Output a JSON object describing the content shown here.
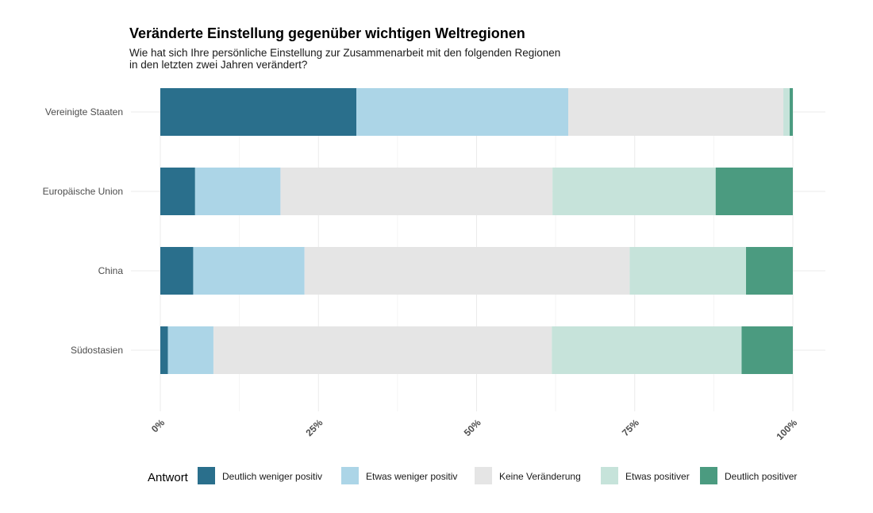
{
  "chart_data": {
    "type": "bar",
    "orientation": "horizontal",
    "stacked": "percent",
    "title": "Veränderte Einstellung gegenüber wichtigen Weltregionen",
    "subtitle_lines": [
      "Wie hat sich Ihre persönliche Einstellung zur Zusammenarbeit mit den folgenden Regionen",
      "in den letzten zwei Jahren verändert?"
    ],
    "categories": [
      "Vereinigte Staaten",
      "Europäische Union",
      "China",
      "Südostasien"
    ],
    "x_ticks": [
      "0%",
      "25%",
      "50%",
      "75%",
      "100%"
    ],
    "xlim": [
      0,
      100
    ],
    "grid": true,
    "legend_position": "bottom",
    "legend_title": "Antwort",
    "series": [
      {
        "name": "Deutlich weniger positiv",
        "color": "#2a6f8c",
        "values": [
          31.0,
          5.5,
          5.2,
          1.2
        ]
      },
      {
        "name": "Etwas weniger positiv",
        "color": "#acd5e7",
        "values": [
          33.5,
          13.5,
          17.6,
          7.2
        ]
      },
      {
        "name": "Keine Veränderung",
        "color": "#e5e5e5",
        "values": [
          34.0,
          43.0,
          51.4,
          53.5
        ]
      },
      {
        "name": "Etwas positiver",
        "color": "#c6e3da",
        "values": [
          1.0,
          25.8,
          18.4,
          30.0
        ]
      },
      {
        "name": "Deutlich positiver",
        "color": "#4b9b80",
        "values": [
          0.5,
          12.2,
          7.4,
          8.1
        ]
      }
    ]
  }
}
